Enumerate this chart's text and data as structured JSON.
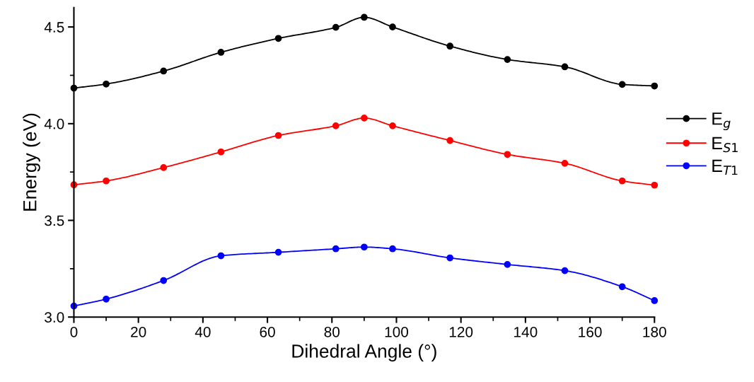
{
  "chart_data": {
    "type": "line",
    "xlabel": "Dihedral Angle (°)",
    "ylabel": "Energy (eV)",
    "x": [
      0,
      10,
      27.8,
      45.6,
      63.4,
      81.2,
      90,
      98.8,
      116.6,
      134.4,
      152.2,
      170,
      180
    ],
    "series": [
      {
        "name": "E$_{g}$",
        "color": "#000000",
        "values": [
          4.184,
          4.205,
          4.272,
          4.369,
          4.441,
          4.498,
          4.55,
          4.5,
          4.401,
          4.332,
          4.294,
          4.203,
          4.195
        ]
      },
      {
        "name": "E$_{S1}$",
        "color": "#ff0000",
        "values": [
          3.684,
          3.704,
          3.773,
          3.854,
          3.939,
          3.989,
          4.029,
          3.989,
          3.913,
          3.841,
          3.795,
          3.704,
          3.682
        ]
      },
      {
        "name": "E$_{T1}$",
        "color": "#0000ff",
        "values": [
          3.057,
          3.093,
          3.189,
          3.317,
          3.335,
          3.353,
          3.362,
          3.353,
          3.306,
          3.272,
          3.24,
          3.157,
          3.085
        ]
      }
    ],
    "xlim": [
      0,
      180
    ],
    "xticks": [
      0,
      20,
      40,
      60,
      80,
      100,
      120,
      140,
      160,
      180
    ],
    "ylim": [
      3.0,
      4.6
    ],
    "yticks": [
      {
        "value": 3.0,
        "label": "3.0"
      },
      {
        "value": 3.5,
        "label": "3.5"
      },
      {
        "value": 4.0,
        "label": "4.0"
      },
      {
        "value": 4.5,
        "label": "4.5"
      }
    ],
    "marker": "circle",
    "line_style": "solid",
    "legend": "right",
    "grid": false
  }
}
